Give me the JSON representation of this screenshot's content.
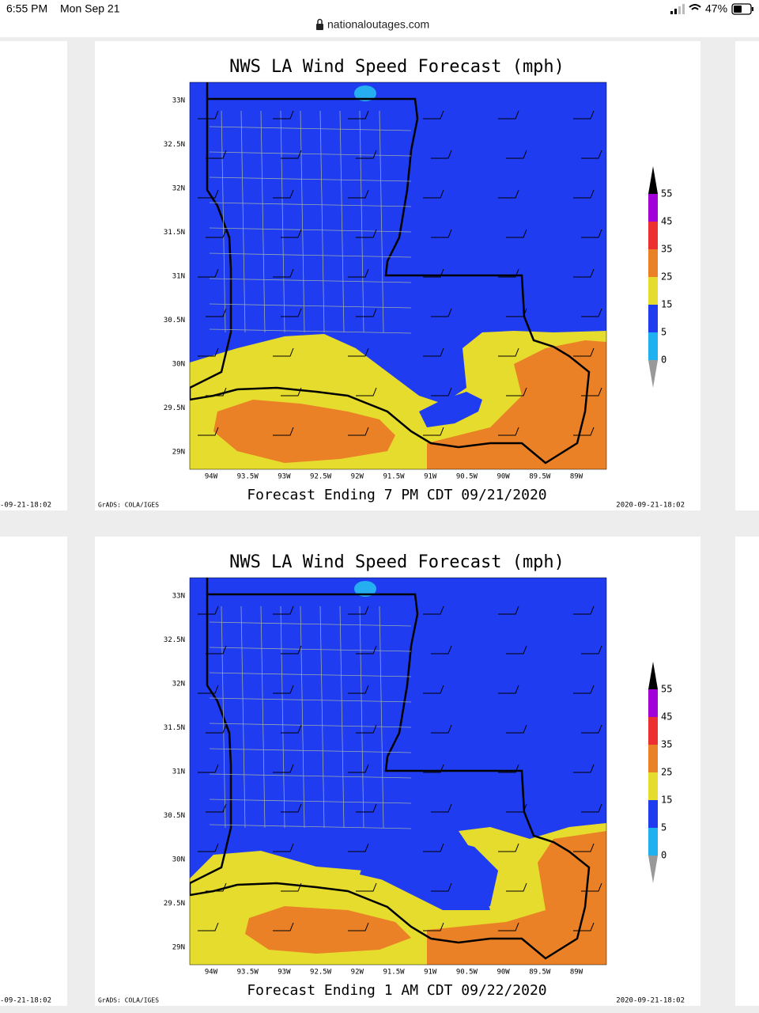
{
  "status_bar": {
    "time": "6:55 PM",
    "date": "Mon Sep 21",
    "battery": "47%"
  },
  "address_bar": {
    "url": "nationaloutages.com"
  },
  "panels": [
    {
      "title": "NWS LA Wind Speed Forecast (mph)",
      "lat_labels": [
        "33N",
        "32.5N",
        "32N",
        "31.5N",
        "31N",
        "30.5N",
        "30N",
        "29.5N",
        "29N"
      ],
      "lon_labels": [
        "94W",
        "93.5W",
        "93W",
        "92.5W",
        "92W",
        "91.5W",
        "91W",
        "90.5W",
        "90W",
        "89.5W",
        "89W"
      ],
      "legend_labels": [
        "55",
        "45",
        "35",
        "25",
        "15",
        "5",
        "0"
      ],
      "caption": "Forecast Ending 7 PM CDT 09/21/2020",
      "credit": "GrADS: COLA/IGES",
      "timestamp": "2020-09-21-18:02",
      "left_timestamp": "-09-21-18:02"
    },
    {
      "title": "NWS LA Wind Speed Forecast (mph)",
      "lat_labels": [
        "33N",
        "32.5N",
        "32N",
        "31.5N",
        "31N",
        "30.5N",
        "30N",
        "29.5N",
        "29N"
      ],
      "lon_labels": [
        "94W",
        "93.5W",
        "93W",
        "92.5W",
        "92W",
        "91.5W",
        "91W",
        "90.5W",
        "90W",
        "89.5W",
        "89W"
      ],
      "legend_labels": [
        "55",
        "45",
        "35",
        "25",
        "15",
        "5",
        "0"
      ],
      "caption": "Forecast Ending 1 AM CDT 09/22/2020",
      "credit": "GrADS: COLA/IGES",
      "timestamp": "2020-09-21-18:02",
      "left_timestamp": "-09-21-18:02"
    }
  ]
}
